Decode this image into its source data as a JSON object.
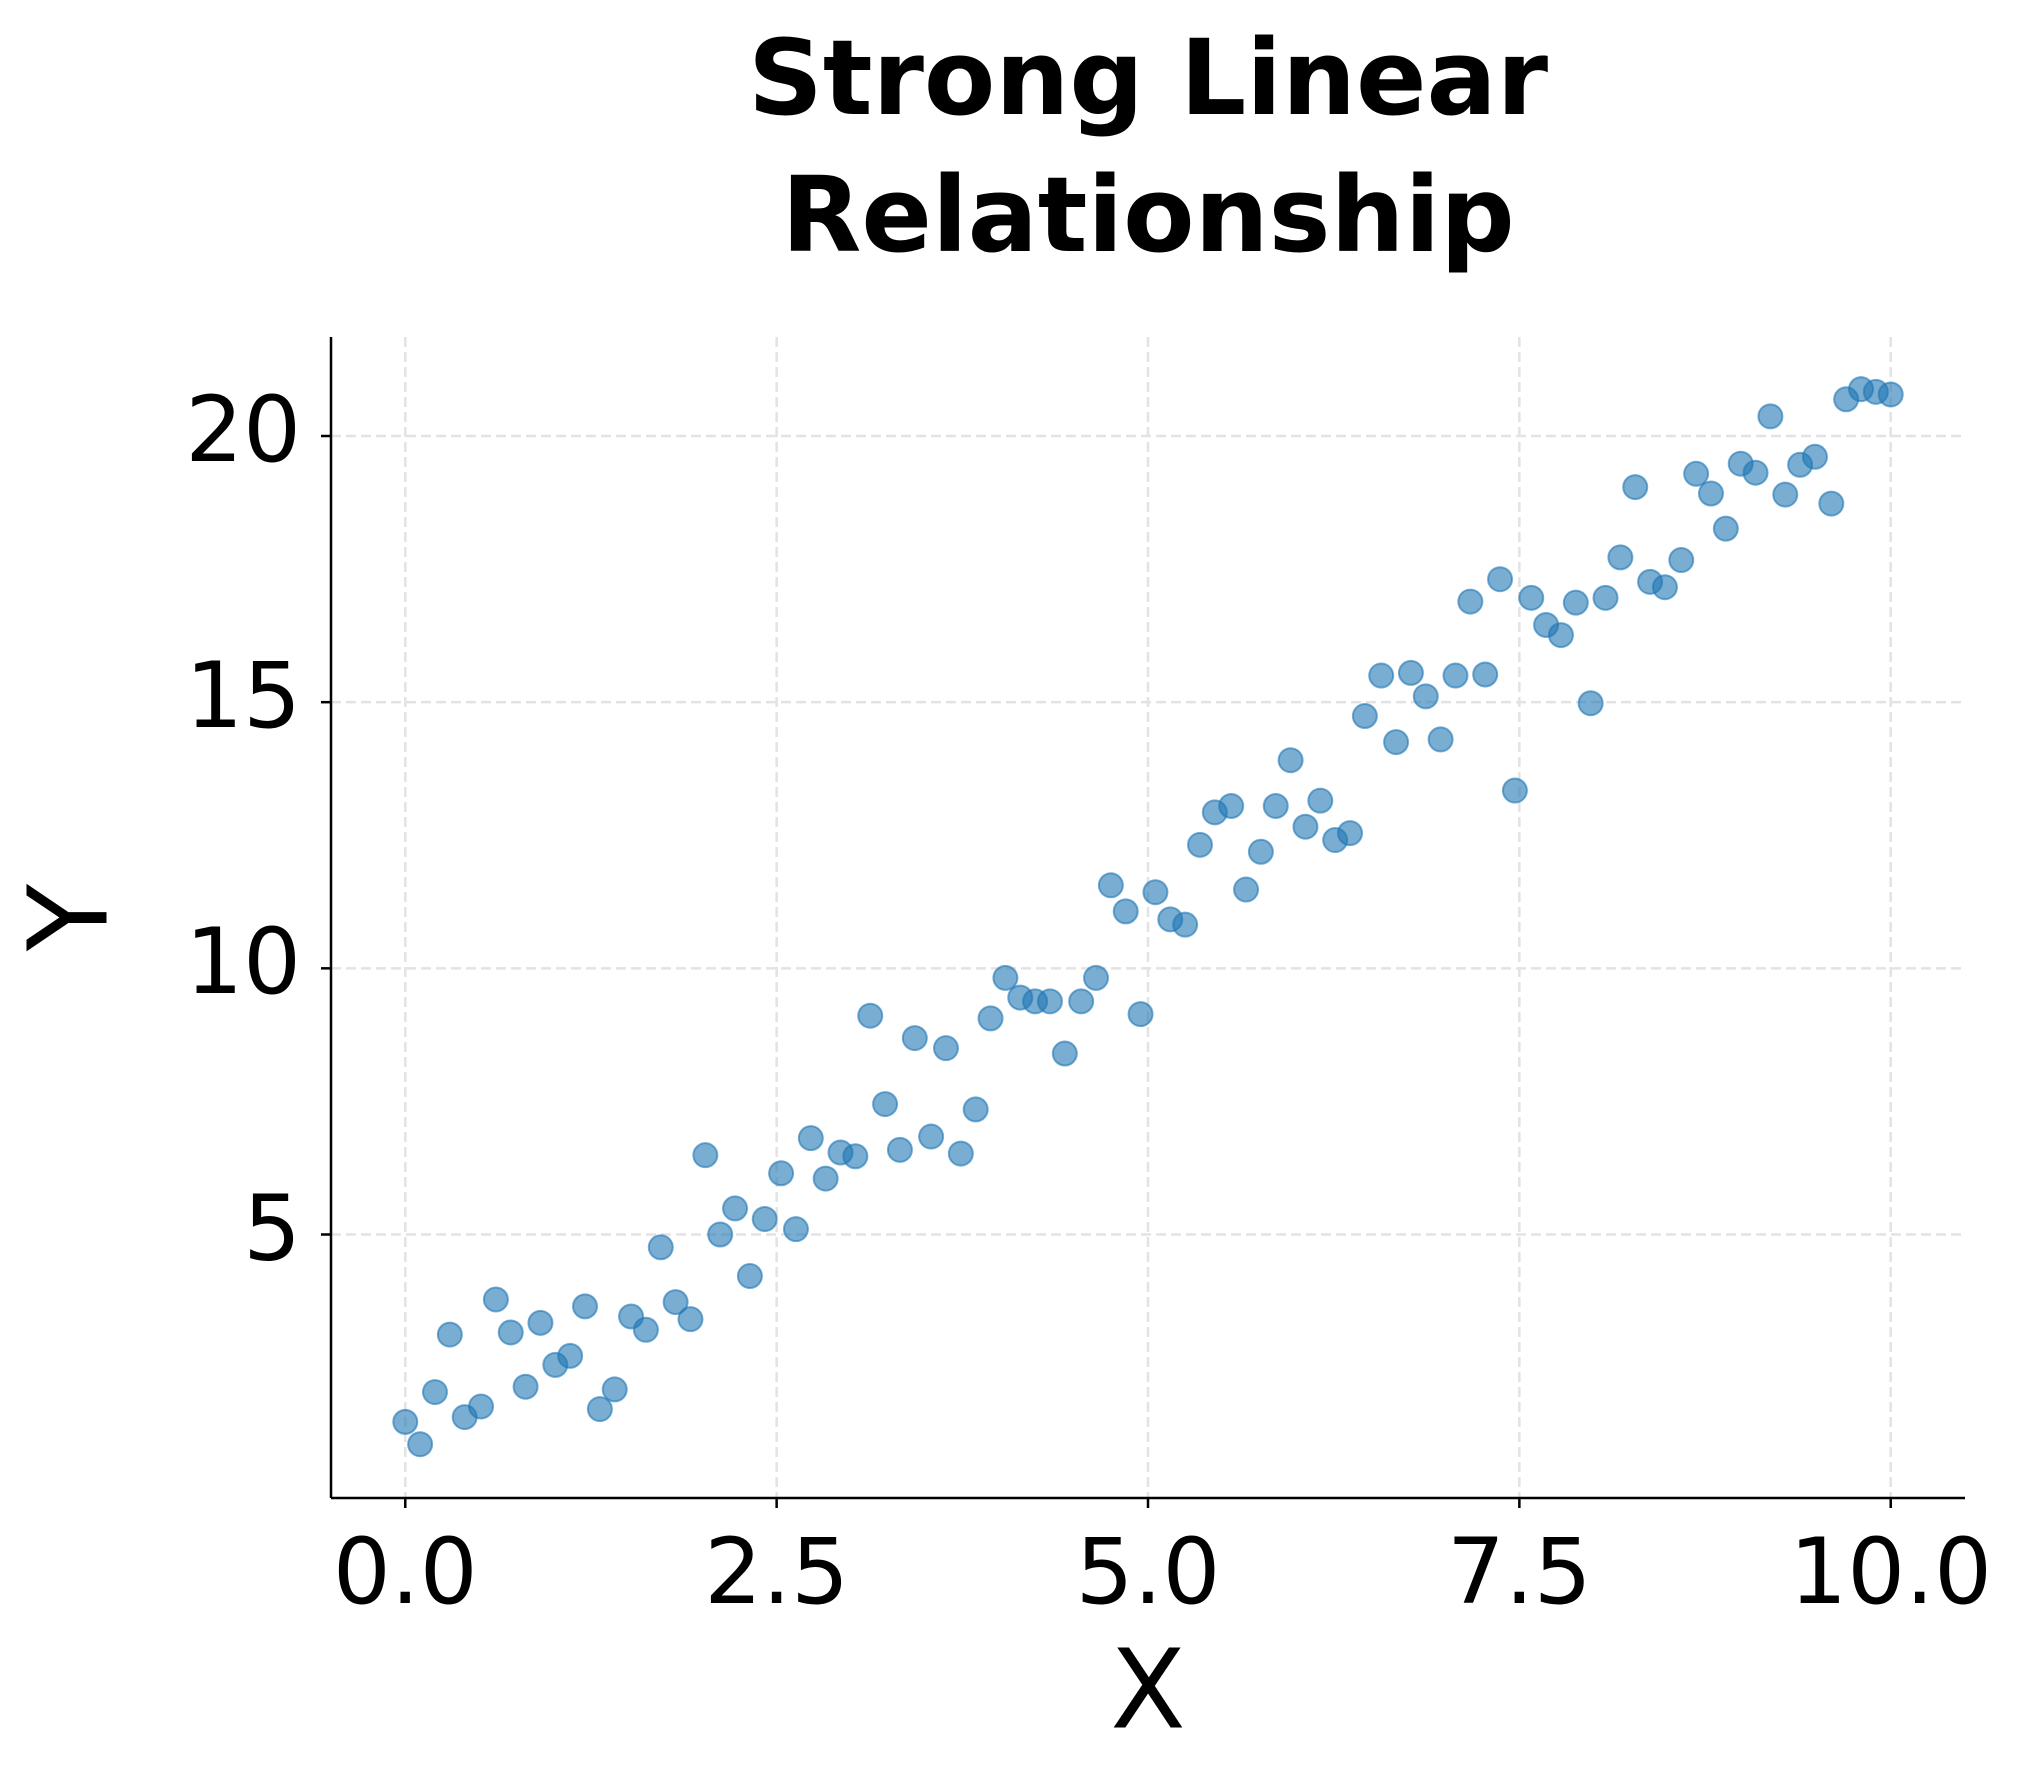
{
  "chart_data": {
    "type": "scatter",
    "title": "Strong Linear Relationship",
    "x_label": "X",
    "y_label": "Y",
    "x": [
      0,
      0.1,
      0.2,
      0.3,
      0.4,
      0.51,
      0.61,
      0.71,
      0.81,
      0.91,
      1.01,
      1.11,
      1.21,
      1.31,
      1.41,
      1.52,
      1.62,
      1.72,
      1.82,
      1.92,
      2.02,
      2.12,
      2.22,
      2.32,
      2.42,
      2.53,
      2.63,
      2.73,
      2.83,
      2.93,
      3.03,
      3.13,
      3.23,
      3.33,
      3.43,
      3.54,
      3.64,
      3.74,
      3.84,
      3.94,
      4.04,
      4.14,
      4.24,
      4.34,
      4.44,
      4.55,
      4.65,
      4.75,
      4.85,
      4.95,
      5.05,
      5.15,
      5.25,
      5.35,
      5.45,
      5.56,
      5.66,
      5.76,
      5.86,
      5.96,
      6.06,
      6.16,
      6.26,
      6.36,
      6.46,
      6.57,
      6.67,
      6.77,
      6.87,
      6.97,
      7.07,
      7.17,
      7.27,
      7.37,
      7.47,
      7.58,
      7.68,
      7.78,
      7.88,
      7.98,
      8.08,
      8.18,
      8.28,
      8.38,
      8.48,
      8.59,
      8.69,
      8.79,
      8.89,
      8.99,
      9.09,
      9.19,
      9.29,
      9.39,
      9.49,
      9.6,
      9.7,
      9.8,
      9.9,
      10
    ],
    "values": [
      1.48,
      1.06,
      2.04,
      3.12,
      1.57,
      1.77,
      3.78,
      3.16,
      2.14,
      3.34,
      2.55,
      2.72,
      3.65,
      1.72,
      2.09,
      3.46,
      3.21,
      4.76,
      3.73,
      3.41,
      6.49,
      5.0,
      5.49,
      4.22,
      5.29,
      6.15,
      5.1,
      6.81,
      6.05,
      6.54,
      6.47,
      9.11,
      7.45,
      6.59,
      8.69,
      6.84,
      8.5,
      6.52,
      7.35,
      9.06,
      9.82,
      9.45,
      9.38,
      9.38,
      8.4,
      9.38,
      9.82,
      11.56,
      11.07,
      9.14,
      11.43,
      10.92,
      10.82,
      12.32,
      12.93,
      13.05,
      11.48,
      12.19,
      13.05,
      13.91,
      12.66,
      13.15,
      12.41,
      12.54,
      14.74,
      15.5,
      14.25,
      15.55,
      15.11,
      14.3,
      15.5,
      16.89,
      15.52,
      17.31,
      13.34,
      16.96,
      16.45,
      16.26,
      16.87,
      14.98,
      16.96,
      17.72,
      19.04,
      17.26,
      17.16,
      17.67,
      19.29,
      18.92,
      18.26,
      19.48,
      19.31,
      20.37,
      18.9,
      19.46,
      19.61,
      18.73,
      20.69,
      20.88,
      20.83,
      20.78
    ],
    "color": "#1f77b4",
    "xlim": [
      -0.5,
      10.5
    ],
    "ylim": [
      0.05,
      21.86
    ],
    "xticks": [
      {
        "value": 0,
        "label": "0.0"
      },
      {
        "value": 2.5,
        "label": "2.5"
      },
      {
        "value": 5,
        "label": "5.0"
      },
      {
        "value": 7.5,
        "label": "7.5"
      },
      {
        "value": 10,
        "label": "10.0"
      }
    ],
    "yticks": [
      5,
      10,
      15,
      20
    ],
    "grid": true
  }
}
